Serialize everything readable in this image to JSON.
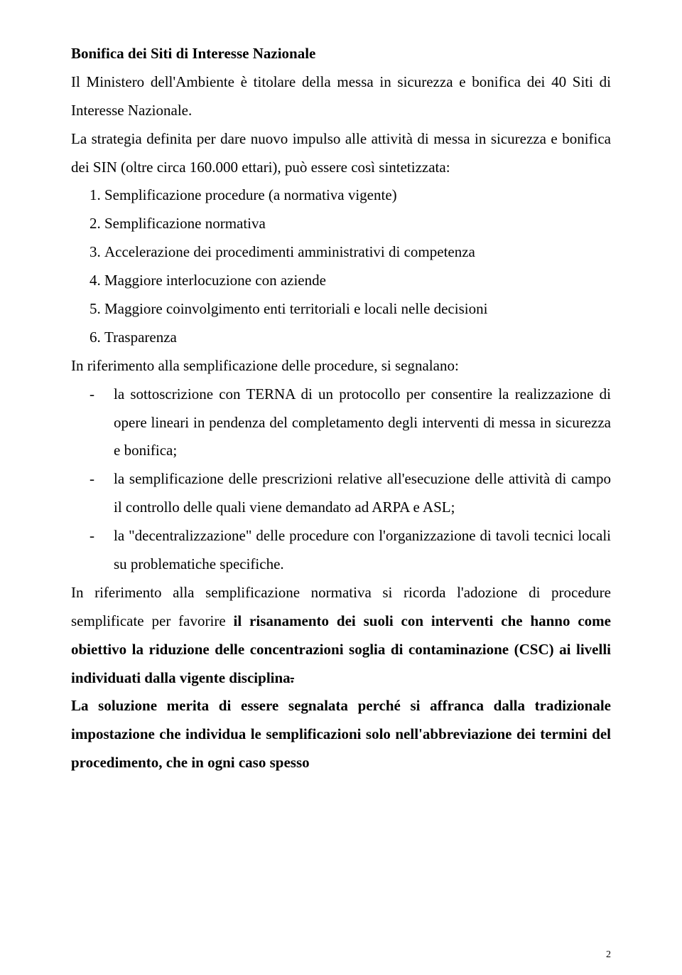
{
  "heading": "Bonifica dei Siti di Interesse Nazionale",
  "p1": "Il Ministero dell'Ambiente è titolare della messa in sicurezza e bonifica dei 40 Siti di Interesse Nazionale.",
  "p2": "La strategia definita per dare nuovo impulso alle attività di messa in sicurezza e bonifica dei SIN (oltre circa 160.000 ettari), può essere così sintetizzata:",
  "numbered": [
    "Semplificazione procedure (a normativa vigente)",
    "Semplificazione normativa",
    "Accelerazione dei procedimenti amministrativi di competenza",
    "Maggiore interlocuzione con aziende",
    "Maggiore coinvolgimento enti territoriali e locali nelle decisioni",
    "Trasparenza"
  ],
  "p3": "In riferimento alla semplificazione delle procedure, si segnalano:",
  "dashes": [
    "la sottoscrizione con TERNA di un protocollo per consentire la realizzazione di opere lineari in pendenza del completamento degli interventi di messa in sicurezza e bonifica;",
    "la semplificazione delle prescrizioni relative all'esecuzione delle attività di campo il controllo delle quali viene demandato ad ARPA e ASL;",
    "la \"decentralizzazione\" delle procedure con l'organizzazione di tavoli tecnici locali su problematiche specifiche."
  ],
  "p4a": "In riferimento alla semplificazione normativa si ricorda l'adozione di procedure semplificate per favorire ",
  "p4b": "il risanamento dei suoli con interventi che hanno come obiettivo la riduzione delle concentrazioni soglia di contaminazione (CSC) ai livelli individuati dalla vigente disciplina",
  "p4strike": ".",
  "p5": "La soluzione merita di essere segnalata perché si affranca dalla tradizionale impostazione che individua le semplificazioni solo nell'abbreviazione dei termini del procedimento, che in ogni caso spesso",
  "pageNumber": "2",
  "fontSizeBody": 21,
  "fontSizeFooter": 14,
  "textColor": "#000000",
  "backgroundColor": "#ffffff"
}
